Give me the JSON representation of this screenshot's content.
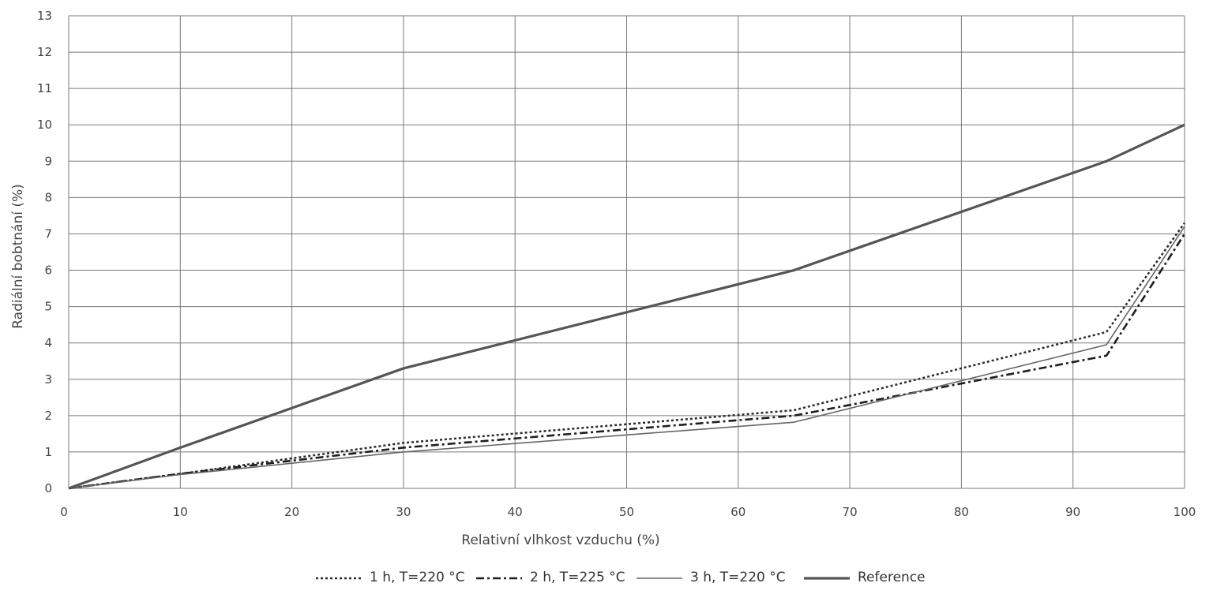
{
  "chart_data": {
    "type": "line",
    "xlabel": "Relativní vlhkost vzduchu (%)",
    "ylabel": "Radiální bobtnání (%)",
    "xlim": [
      0,
      100
    ],
    "ylim": [
      0,
      13
    ],
    "x_ticks": [
      0,
      10,
      20,
      30,
      40,
      50,
      60,
      70,
      80,
      90,
      100
    ],
    "y_ticks": [
      0,
      1,
      2,
      3,
      4,
      5,
      6,
      7,
      8,
      9,
      10,
      11,
      12,
      13
    ],
    "grid": true,
    "legend_position": "bottom",
    "x": [
      0,
      10,
      30,
      65,
      93,
      100
    ],
    "series": [
      {
        "name": "1 h, T=220 °C",
        "style": "dotted",
        "color": "#2b2b2b",
        "values": [
          0,
          0.4,
          1.25,
          2.15,
          4.3,
          7.3
        ]
      },
      {
        "name": "2 h, T=225 °C",
        "style": "dash-dot",
        "color": "#1e1e1e",
        "values": [
          0,
          0.4,
          1.12,
          2.0,
          3.65,
          7.0
        ]
      },
      {
        "name": "3 h, T=220 °C",
        "style": "thin",
        "color": "#666666",
        "values": [
          0,
          0.38,
          1.0,
          1.82,
          3.95,
          7.2
        ]
      },
      {
        "name": "Reference",
        "style": "thick",
        "color": "#555555",
        "values": [
          0,
          1.12,
          3.3,
          6.0,
          9.0,
          10.0
        ]
      }
    ]
  }
}
